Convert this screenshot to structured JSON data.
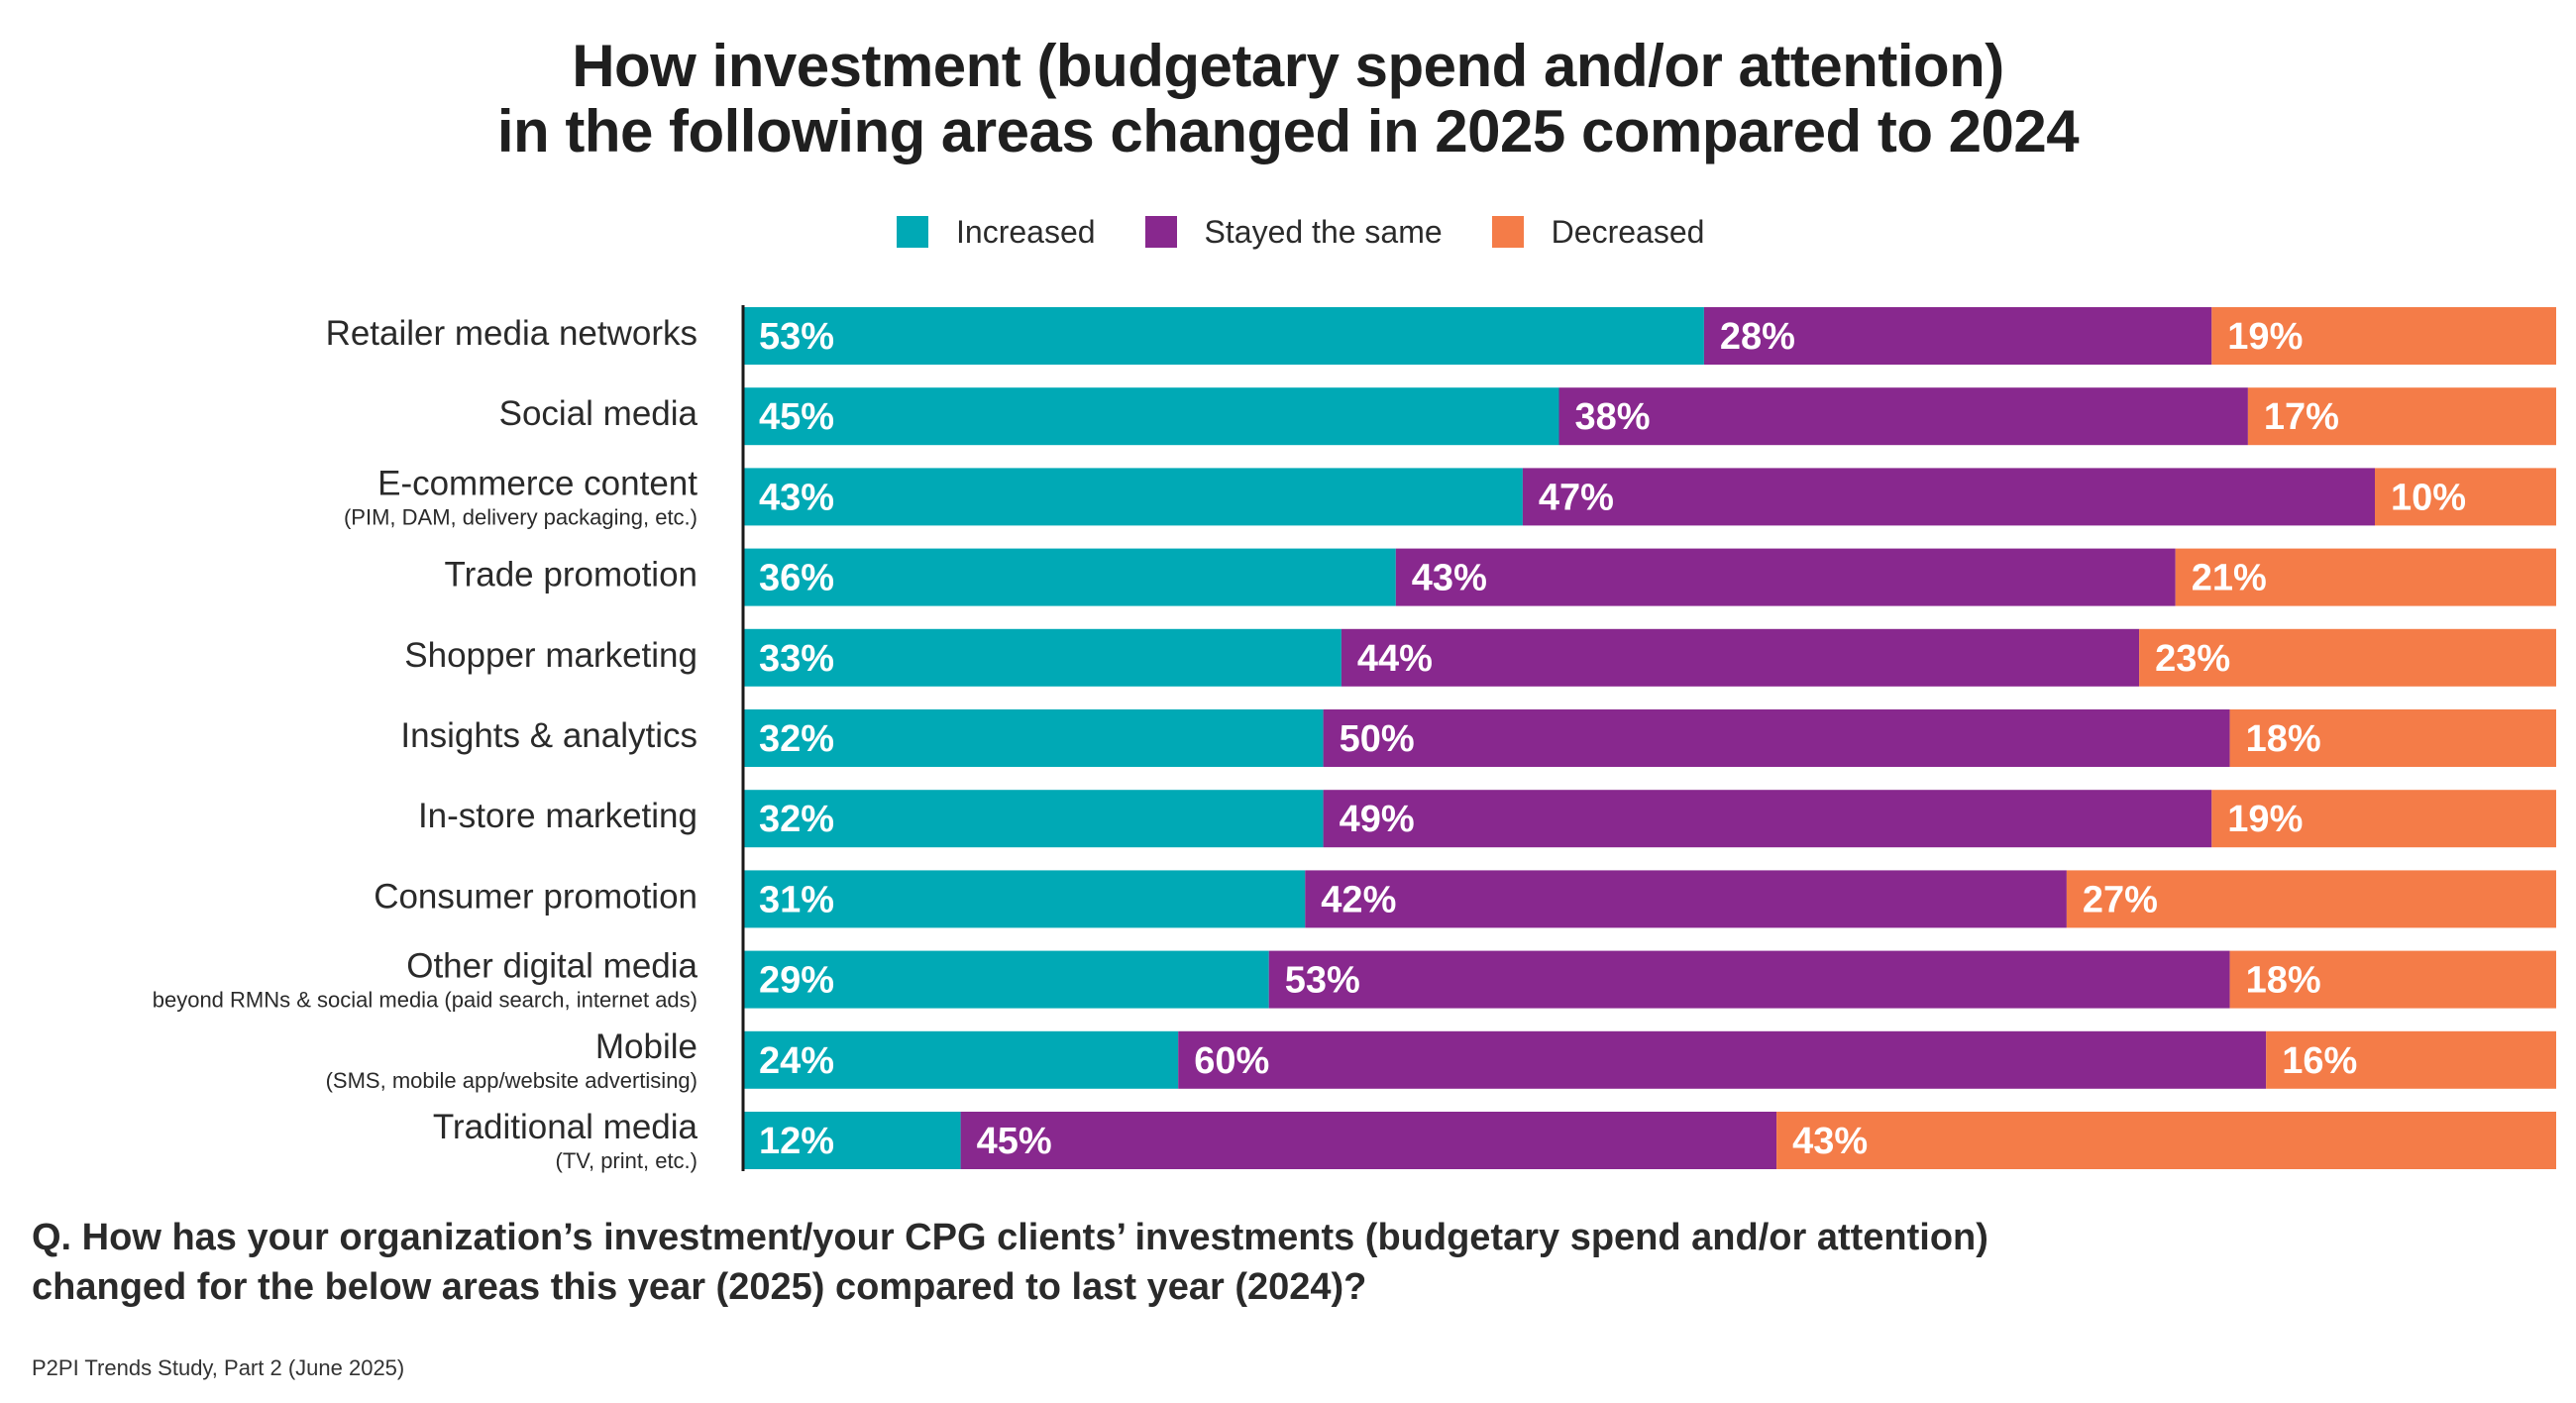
{
  "chart_data": {
    "type": "bar",
    "orientation": "horizontal",
    "stacked": true,
    "title_lines": [
      "How investment (budgetary spend and/or attention)",
      "in the following areas changed in 2025 compared to 2024"
    ],
    "categories": [
      {
        "label": "Retailer media networks",
        "sublabel": ""
      },
      {
        "label": "Social media",
        "sublabel": ""
      },
      {
        "label": "E-commerce content",
        "sublabel": "(PIM, DAM, delivery packaging, etc.)"
      },
      {
        "label": "Trade promotion",
        "sublabel": ""
      },
      {
        "label": "Shopper marketing",
        "sublabel": ""
      },
      {
        "label": "Insights & analytics",
        "sublabel": ""
      },
      {
        "label": "In-store marketing",
        "sublabel": ""
      },
      {
        "label": "Consumer promotion",
        "sublabel": ""
      },
      {
        "label": "Other digital media",
        "sublabel": "beyond RMNs & social media (paid search, internet ads)"
      },
      {
        "label": "Mobile",
        "sublabel": "(SMS, mobile app/website advertising)"
      },
      {
        "label": "Traditional media",
        "sublabel": "(TV, print, etc.)"
      }
    ],
    "series": [
      {
        "name": "Increased",
        "color": "#00A9B5",
        "values": [
          53,
          45,
          43,
          36,
          33,
          32,
          32,
          31,
          29,
          24,
          12
        ]
      },
      {
        "name": "Stayed the same",
        "color": "#88288E",
        "values": [
          28,
          38,
          47,
          43,
          44,
          50,
          49,
          42,
          53,
          60,
          45
        ]
      },
      {
        "name": "Decreased",
        "color": "#F47C48",
        "values": [
          19,
          17,
          10,
          21,
          23,
          18,
          19,
          27,
          18,
          16,
          43
        ]
      }
    ],
    "value_suffix": "%",
    "xlim": [
      0,
      100
    ]
  },
  "question_lines": [
    "Q. How has your organization’s investment/your CPG clients’ investments (budgetary spend and/or attention)",
    "changed for the below areas this year (2025) compared to last year (2024)?"
  ],
  "source": "P2PI Trends Study, Part 2 (June 2025)"
}
